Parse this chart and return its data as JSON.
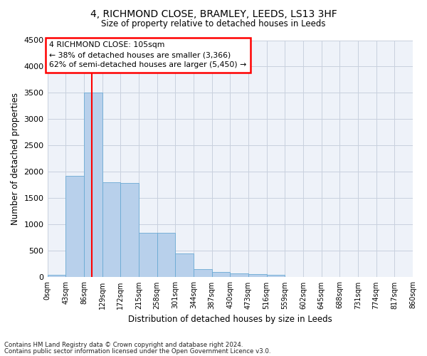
{
  "title1": "4, RICHMOND CLOSE, BRAMLEY, LEEDS, LS13 3HF",
  "title2": "Size of property relative to detached houses in Leeds",
  "xlabel": "Distribution of detached houses by size in Leeds",
  "ylabel": "Number of detached properties",
  "bar_color": "#b8d0eb",
  "bar_edge_color": "#6aaad4",
  "bin_labels": [
    "0sqm",
    "43sqm",
    "86sqm",
    "129sqm",
    "172sqm",
    "215sqm",
    "258sqm",
    "301sqm",
    "344sqm",
    "387sqm",
    "430sqm",
    "473sqm",
    "516sqm",
    "559sqm",
    "602sqm",
    "645sqm",
    "688sqm",
    "731sqm",
    "774sqm",
    "817sqm",
    "860sqm"
  ],
  "bar_values": [
    40,
    1920,
    3510,
    1800,
    1790,
    840,
    840,
    450,
    160,
    100,
    70,
    55,
    40,
    0,
    0,
    0,
    0,
    0,
    0,
    0
  ],
  "ylim": [
    0,
    4500
  ],
  "yticks": [
    0,
    500,
    1000,
    1500,
    2000,
    2500,
    3000,
    3500,
    4000,
    4500
  ],
  "property_sqm": 105,
  "vline_x_bin": 2.44,
  "annotation_text": "4 RICHMOND CLOSE: 105sqm\n← 38% of detached houses are smaller (3,366)\n62% of semi-detached houses are larger (5,450) →",
  "annotation_box_color": "white",
  "annotation_box_edge": "red",
  "footer1": "Contains HM Land Registry data © Crown copyright and database right 2024.",
  "footer2": "Contains public sector information licensed under the Open Government Licence v3.0.",
  "background_color": "#eef2f9",
  "grid_color": "#c8d0de"
}
